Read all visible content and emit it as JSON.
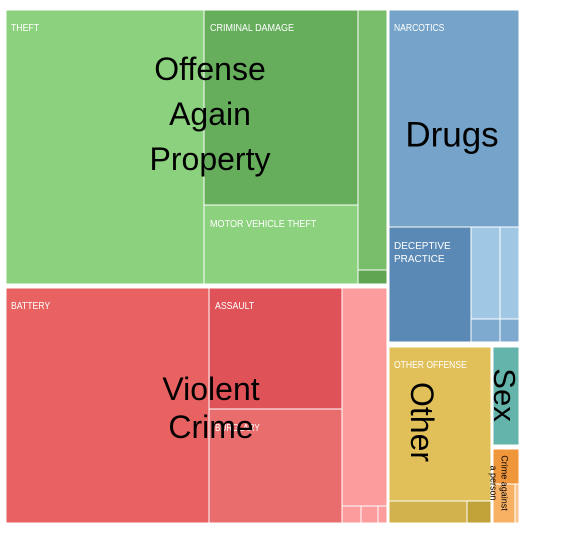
{
  "chart_data": {
    "type": "treemap",
    "title": "",
    "groups": [
      {
        "name": "Offense Again Property",
        "label_lines": [
          "Offense",
          "Again",
          "Property"
        ],
        "color": "#8cd17d",
        "items": [
          {
            "name": "THEFT",
            "value": 47,
            "color": "#8cd17d"
          },
          {
            "name": "CRIMINAL DAMAGE",
            "value": 20,
            "color": "#66ad5c"
          },
          {
            "name": "MOTOR VEHICLE THEFT",
            "value": 11,
            "color": "#8cd17d"
          },
          {
            "name": "",
            "value": 7,
            "color": "#77bd6a"
          },
          {
            "name": "",
            "value": 1,
            "color": "#5fa552"
          }
        ]
      },
      {
        "name": "Drugs",
        "label_lines": [
          "Drugs"
        ],
        "color": "#76a3c9",
        "items": [
          {
            "name": "NARCOTICS",
            "value": 28,
            "color": "#76a3c9"
          },
          {
            "name": "DECEPTIVE PRACTICE",
            "value": 8,
            "color": "#5a89b5"
          },
          {
            "name": "",
            "value": 2.5,
            "color": "#a0c8e5"
          },
          {
            "name": "",
            "value": 2.2,
            "color": "#a0c8e5"
          },
          {
            "name": "",
            "value": 1.1,
            "color": "#7eaad0"
          },
          {
            "name": "",
            "value": 0.7,
            "color": "#7eaad0"
          }
        ]
      },
      {
        "name": "Violent Crime",
        "label_lines": [
          "Violent",
          "Crime"
        ],
        "color": "#e45756",
        "items": [
          {
            "name": "BATTERY",
            "value": 45,
            "color": "#e86262"
          },
          {
            "name": "ASSAULT",
            "value": 13,
            "color": "#df5258"
          },
          {
            "name": "BURGLARY",
            "value": 13,
            "color": "#ea6d6e"
          },
          {
            "name": "",
            "value": 8.5,
            "color": "#fc9c9c"
          },
          {
            "name": "",
            "value": 0.7,
            "color": "#fc9c9c"
          },
          {
            "name": "",
            "value": 0.4,
            "color": "#fc9c9c"
          },
          {
            "name": "",
            "value": 0.2,
            "color": "#fc9c9c"
          }
        ]
      },
      {
        "name": "Other",
        "label_lines": [
          "Other"
        ],
        "color": "#e1c05a",
        "items": [
          {
            "name": "OTHER OFFENSE",
            "value": 13,
            "color": "#e1c05a"
          },
          {
            "name": "",
            "value": 1.5,
            "color": "#d1b24c"
          },
          {
            "name": "",
            "value": 0.6,
            "color": "#c1a238"
          }
        ]
      },
      {
        "name": "Sex",
        "label_lines": [
          "Sex"
        ],
        "color": "#65b4ab",
        "items": [
          {
            "name": "",
            "value": 2.8,
            "color": "#65b4ab"
          }
        ]
      },
      {
        "name": "Crime against a person",
        "label_lines": [
          "Crime against",
          "a person"
        ],
        "color": "#f5a04c",
        "items": [
          {
            "name": "",
            "value": 0.8,
            "color": "#f0963b"
          },
          {
            "name": "",
            "value": 0.9,
            "color": "#f8b063"
          },
          {
            "name": "",
            "value": 0.35,
            "color": "#fbc590"
          }
        ]
      }
    ]
  }
}
